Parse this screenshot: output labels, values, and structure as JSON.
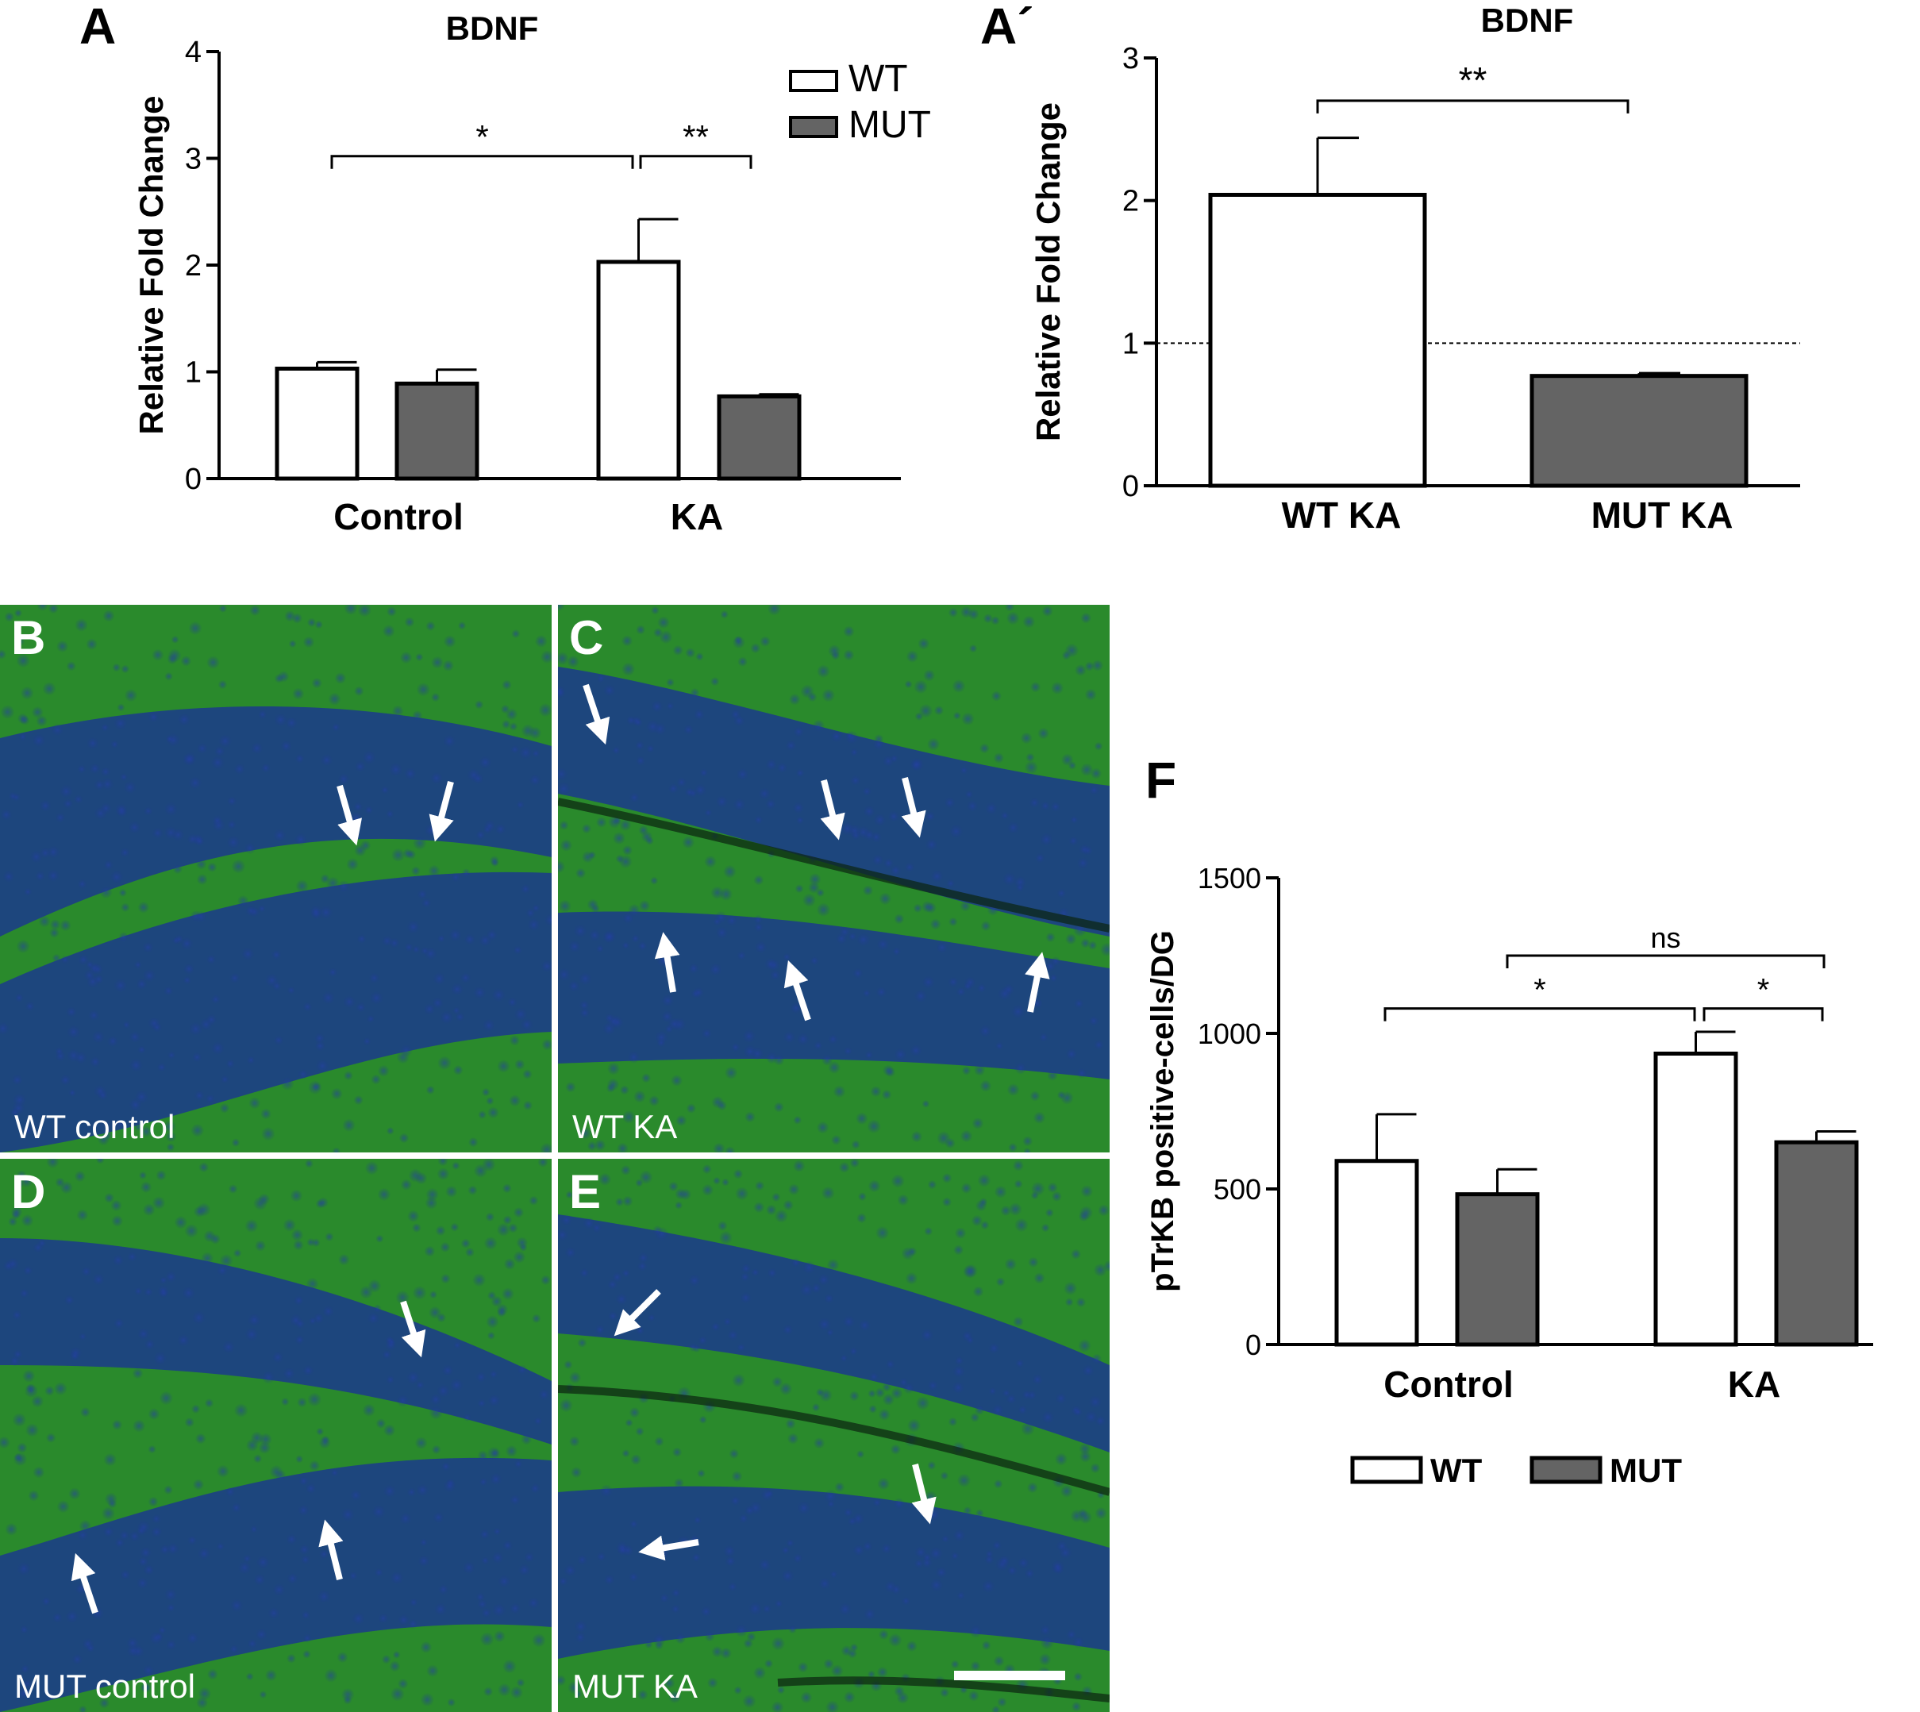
{
  "chart_data": [
    {
      "panel": "A",
      "type": "bar",
      "title": "BDNF",
      "ylabel": "Relative Fold Change",
      "ylim": [
        0,
        4
      ],
      "yticks": [
        "0",
        "1",
        "2",
        "3",
        "4"
      ],
      "categories": [
        "Control",
        "KA"
      ],
      "series": [
        {
          "name": "WT",
          "values": [
            1.03,
            2.03
          ],
          "errors": [
            0.06,
            0.4
          ],
          "color": "#ffffff"
        },
        {
          "name": "MUT",
          "values": [
            0.89,
            0.77
          ],
          "errors": [
            0.13,
            0.02
          ],
          "color": "#646464"
        }
      ],
      "legend": "top-right",
      "annotations": [
        {
          "text": "*",
          "from": "Control WT",
          "to": "KA WT",
          "y": 3.02
        },
        {
          "text": "**",
          "from": "KA WT",
          "to": "KA MUT",
          "y": 3.02
        }
      ]
    },
    {
      "panel": "A´",
      "type": "bar",
      "title": "BDNF",
      "ylabel": "Relative Fold Change",
      "ylim": [
        0,
        3
      ],
      "yticks": [
        "0",
        "1",
        "2",
        "3"
      ],
      "categories": [
        "WT KA",
        "MUT KA"
      ],
      "values": [
        2.04,
        0.77
      ],
      "errors": [
        0.4,
        0.02
      ],
      "colors": [
        "#ffffff",
        "#646464"
      ],
      "reference_line": 1,
      "annotations": [
        {
          "text": "**",
          "from": "WT KA",
          "to": "MUT KA",
          "y": 2.7
        }
      ]
    },
    {
      "panel": "F",
      "type": "bar",
      "title": "",
      "ylabel": "pTrKB positive-cells/DG",
      "ylim": [
        0,
        1500
      ],
      "yticks": [
        "0",
        "500",
        "1000",
        "1500"
      ],
      "categories": [
        "Control",
        "KA"
      ],
      "series": [
        {
          "name": "WT",
          "values": [
            590,
            935
          ],
          "errors": [
            150,
            70
          ],
          "color": "#ffffff"
        },
        {
          "name": "MUT",
          "values": [
            483,
            650
          ],
          "errors": [
            80,
            35
          ],
          "color": "#646464"
        }
      ],
      "legend": "bottom",
      "annotations": [
        {
          "text": "*",
          "from": "Control WT",
          "to": "KA WT",
          "y": 1080
        },
        {
          "text": "*",
          "from": "KA WT",
          "to": "KA MUT",
          "y": 1080
        },
        {
          "text": "ns",
          "from": "Control MUT",
          "to": "KA MUT",
          "y": 1250
        }
      ]
    }
  ],
  "panels": {
    "A": "A",
    "A2": "A´",
    "F": "F",
    "B": {
      "letter": "B",
      "caption": "WT control"
    },
    "C": {
      "letter": "C",
      "caption": "WT KA"
    },
    "D": {
      "letter": "D",
      "caption": "MUT control"
    },
    "E": {
      "letter": "E",
      "caption": "MUT KA"
    }
  },
  "colors": {
    "tissue_green": "#2a8a2c",
    "cell_blue": "#1b3a8c",
    "arrow": "#ffffff"
  }
}
